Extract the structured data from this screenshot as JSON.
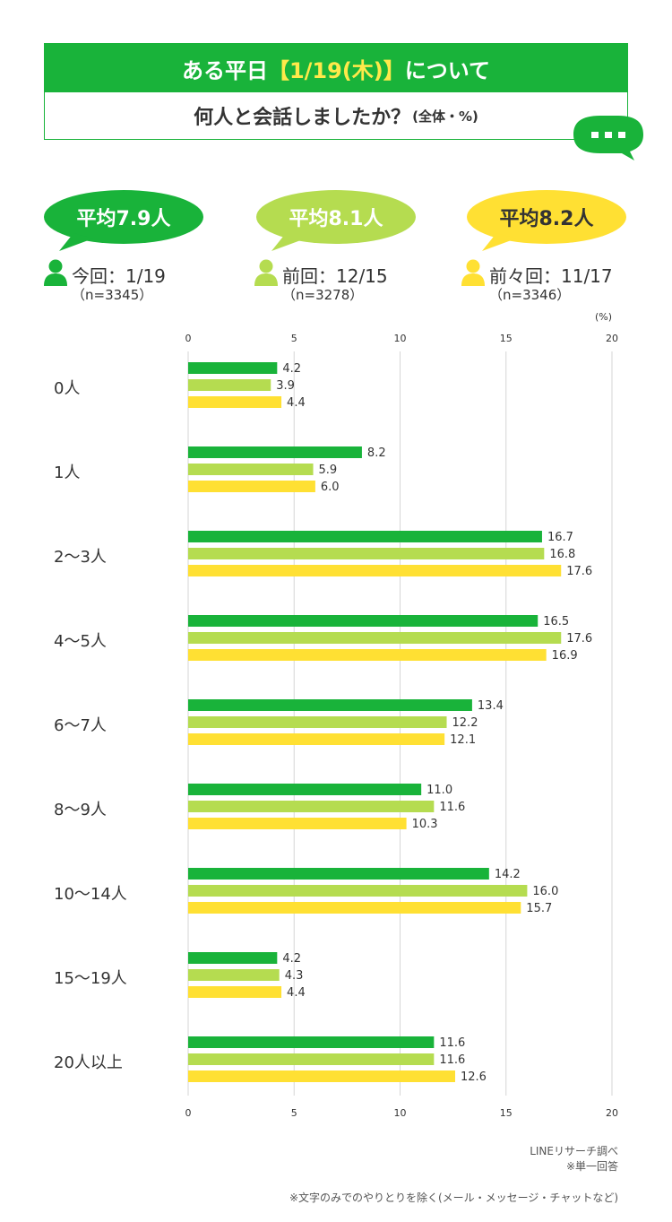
{
  "title": {
    "line1_pre": "ある平日",
    "line1_date": "【1/19(木)】",
    "line1_post": "について",
    "line2": "何人と会話しましたか？",
    "line2_note": "(全体・%)"
  },
  "speech_icon": "speech-bubble-icon",
  "averages": [
    {
      "label": "平均7.9人",
      "color": "#19b33a",
      "text_color": "#ffffff"
    },
    {
      "label": "平均8.1人",
      "color": "#b5dc50",
      "text_color": "#ffffff"
    },
    {
      "label": "平均8.2人",
      "color": "#ffe033",
      "text_color": "#333333"
    }
  ],
  "legend": [
    {
      "label": "今回：1/19",
      "n": "（n=3345）",
      "icon": "person-icon"
    },
    {
      "label": "前回：12/15",
      "n": "（n=3278）",
      "icon": "person-icon"
    },
    {
      "label": "前々回：11/17",
      "n": "（n=3346）",
      "icon": "person-icon"
    }
  ],
  "unit_label": "(%)",
  "chart_data": {
    "type": "bar",
    "orientation": "horizontal",
    "categories": [
      "0人",
      "1人",
      "2〜3人",
      "4〜5人",
      "6〜7人",
      "8〜9人",
      "10〜14人",
      "15〜19人",
      "20人以上"
    ],
    "series": [
      {
        "name": "今回：1/19",
        "color": "#19b33a",
        "values": [
          4.2,
          8.2,
          16.7,
          16.5,
          13.4,
          11.0,
          14.2,
          4.2,
          11.6
        ]
      },
      {
        "name": "前回：12/15",
        "color": "#b5dc50",
        "values": [
          3.9,
          5.9,
          16.8,
          17.6,
          12.2,
          11.6,
          16.0,
          4.3,
          11.6
        ]
      },
      {
        "name": "前々回：11/17",
        "color": "#ffe033",
        "values": [
          4.4,
          6.0,
          17.6,
          16.9,
          12.1,
          10.3,
          15.7,
          4.4,
          12.6
        ]
      }
    ],
    "xlim": [
      0,
      20
    ],
    "xticks": [
      0,
      5,
      10,
      15,
      20
    ],
    "grid": true,
    "ylabel": "",
    "xlabel": "(%)"
  },
  "footnotes": {
    "source": "LINEリサーチ調べ",
    "answer": "※単一回答",
    "exclusion": "※文字のみでのやりとりを除く(メール・メッセージ・チャットなど)"
  }
}
